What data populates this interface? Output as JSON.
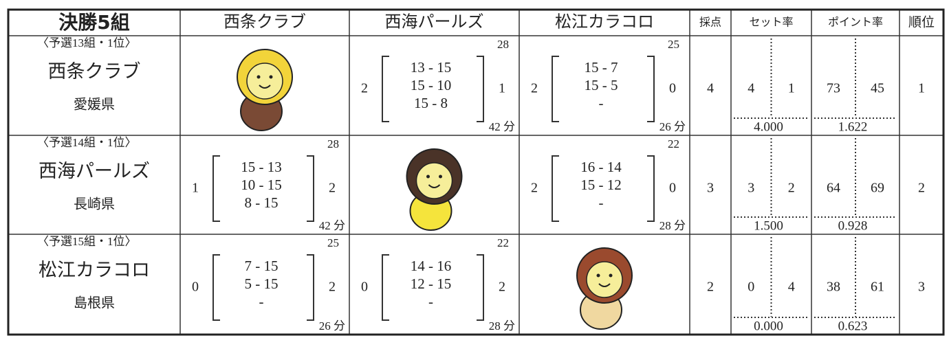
{
  "header": {
    "title": "決勝5組",
    "teams": [
      "西条クラブ",
      "西海パールズ",
      "松江カラコロ"
    ],
    "columns": [
      "採点",
      "セット率",
      "ポイント率",
      "順位"
    ]
  },
  "rows": [
    {
      "qualifier": "〈予選13組・1位〉",
      "name": "西条クラブ",
      "prefecture": "愛媛県",
      "matches": [
        null,
        {
          "won": 2,
          "lost": 1,
          "games": [
            "13 - 15",
            "15 - 10",
            "15 - 8"
          ],
          "points": 28,
          "time": "42 分"
        },
        {
          "won": 2,
          "lost": 0,
          "games": [
            "15 - 7",
            "15 - 5",
            "-"
          ],
          "points": 25,
          "time": "26 分"
        }
      ],
      "score": 4,
      "sets_won": 4,
      "sets_lost": 1,
      "set_rate": "4.000",
      "points_for": 73,
      "points_against": 45,
      "point_rate": "1.622",
      "rank": 1
    },
    {
      "qualifier": "〈予選14組・1位〉",
      "name": "西海パールズ",
      "prefecture": "長崎県",
      "matches": [
        {
          "won": 1,
          "lost": 2,
          "games": [
            "15 - 13",
            "10 - 15",
            "8 - 15"
          ],
          "points": 28,
          "time": "42 分"
        },
        null,
        {
          "won": 2,
          "lost": 0,
          "games": [
            "16 - 14",
            "15 - 12",
            "-"
          ],
          "points": 22,
          "time": "28 分"
        }
      ],
      "score": 3,
      "sets_won": 3,
      "sets_lost": 2,
      "set_rate": "1.500",
      "points_for": 64,
      "points_against": 69,
      "point_rate": "0.928",
      "rank": 2
    },
    {
      "qualifier": "〈予選15組・1位〉",
      "name": "松江カラコロ",
      "prefecture": "島根県",
      "matches": [
        {
          "won": 0,
          "lost": 2,
          "games": [
            "7 - 15",
            "5 - 15",
            "-"
          ],
          "points": 25,
          "time": "26 分"
        },
        {
          "won": 0,
          "lost": 2,
          "games": [
            "14 - 16",
            "12 - 15",
            "-"
          ],
          "points": 22,
          "time": "28 分"
        },
        null
      ],
      "score": 2,
      "sets_won": 0,
      "sets_lost": 4,
      "set_rate": "0.000",
      "points_for": 38,
      "points_against": 61,
      "point_rate": "0.623",
      "rank": 3
    }
  ]
}
